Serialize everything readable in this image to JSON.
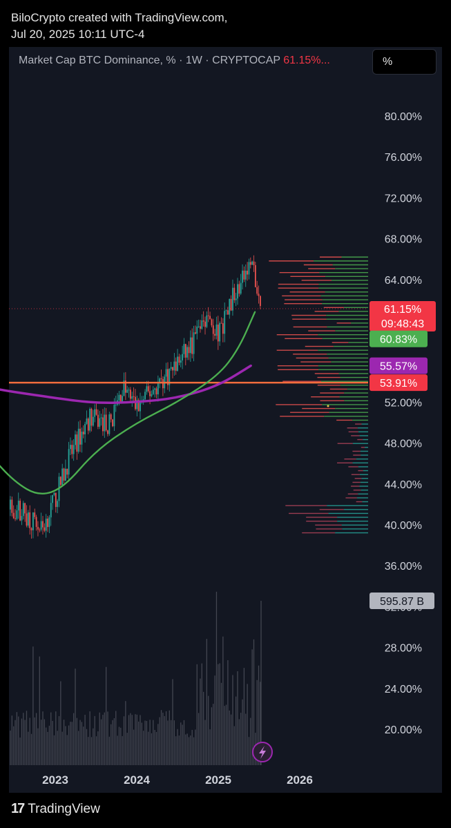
{
  "header": {
    "line1": "BiloCrypto created with TradingView.com,",
    "line2": "Jul 20, 2025 10:11 UTC-4"
  },
  "legend": {
    "text": "Market Cap BTC Dominance, % · 1W · CRYPTOCAP",
    "value": "61.15%..."
  },
  "unit_button": "%",
  "footer": {
    "logo_glyph": "17",
    "brand": "TradingView"
  },
  "icons": {
    "flash": "lightning-bolt-icon"
  },
  "colors": {
    "up": "#26a69a",
    "down": "#ef5350",
    "ma_green": "#4caf50",
    "ma_purple": "#9c27b0",
    "hline": "#f26d3d"
  },
  "chart_data": {
    "type": "candlestick",
    "title": "Market Cap BTC Dominance, %",
    "interval": "1W",
    "symbol": "CRYPTOCAP",
    "yaxis_ticks": [
      "80.00%",
      "76.00%",
      "72.00%",
      "68.00%",
      "64.00%",
      "52.00%",
      "48.00%",
      "44.00%",
      "40.00%",
      "36.00%",
      "32.00%",
      "28.00%",
      "24.00%",
      "20.00%"
    ],
    "xaxis_ticks": [
      "2023",
      "2024",
      "2025",
      "2026"
    ],
    "price_labels": [
      {
        "value": "61.15%",
        "sub": "09:48:43",
        "color": "#f23645"
      },
      {
        "value": "60.83%",
        "color": "#4caf50"
      },
      {
        "value": "55.57%",
        "color": "#9c27b0"
      },
      {
        "value": "53.91%",
        "color": "#f26d3d"
      }
    ],
    "volume_label": "595.87 B",
    "close_price": [
      {
        "x": "2022-08",
        "y": 41.5
      },
      {
        "x": "2022-11",
        "y": 39.5
      },
      {
        "x": "2023-01",
        "y": 42.5
      },
      {
        "x": "2023-03",
        "y": 46.5
      },
      {
        "x": "2023-06",
        "y": 50.5
      },
      {
        "x": "2023-09",
        "y": 49.8
      },
      {
        "x": "2023-11",
        "y": 53.5
      },
      {
        "x": "2024-01",
        "y": 51.5
      },
      {
        "x": "2024-03",
        "y": 53.0
      },
      {
        "x": "2024-06",
        "y": 55.0
      },
      {
        "x": "2024-09",
        "y": 57.5
      },
      {
        "x": "2024-11",
        "y": 60.5
      },
      {
        "x": "2025-01",
        "y": 58.5
      },
      {
        "x": "2025-03",
        "y": 62.0
      },
      {
        "x": "2025-05",
        "y": 64.5
      },
      {
        "x": "2025-06",
        "y": 65.7
      },
      {
        "x": "2025-07",
        "y": 61.15
      }
    ],
    "ma_green_endpoint": 60.83,
    "ma_purple_endpoint": 55.57,
    "horizontal_level": 53.91
  }
}
